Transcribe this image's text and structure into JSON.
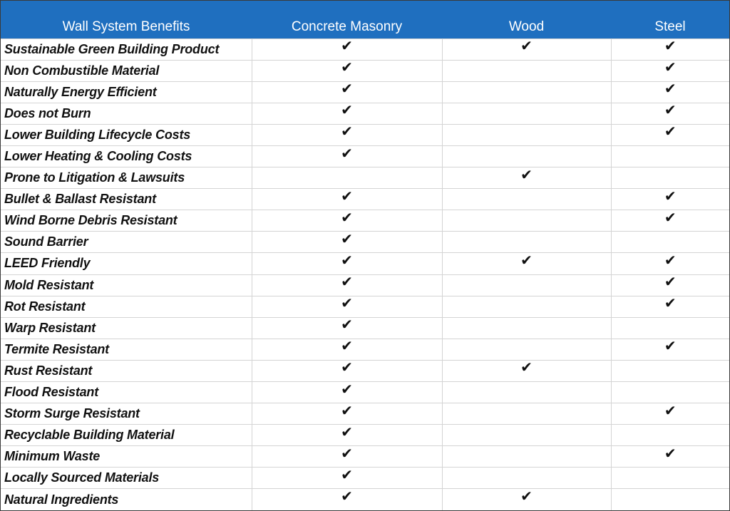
{
  "table": {
    "headers": [
      "Wall System Benefits",
      "Concrete Masonry",
      "Wood",
      "Steel"
    ],
    "check_glyph": "✔",
    "colors": {
      "header_bg": "#1f6fbf",
      "header_text": "#ffffff",
      "grid": "#d4d4d4"
    },
    "rows": [
      {
        "label": "Sustainable Green Building Product",
        "concrete": true,
        "wood": true,
        "steel": true
      },
      {
        "label": "Non Combustible Material",
        "concrete": true,
        "wood": false,
        "steel": true
      },
      {
        "label": "Naturally Energy Efficient",
        "concrete": true,
        "wood": false,
        "steel": true
      },
      {
        "label": "Does not Burn",
        "concrete": true,
        "wood": false,
        "steel": true
      },
      {
        "label": "Lower Building Lifecycle Costs",
        "concrete": true,
        "wood": false,
        "steel": true
      },
      {
        "label": "Lower Heating & Cooling Costs",
        "concrete": true,
        "wood": false,
        "steel": false
      },
      {
        "label": "Prone to Litigation & Lawsuits",
        "concrete": false,
        "wood": true,
        "steel": false
      },
      {
        "label": "Bullet & Ballast Resistant",
        "concrete": true,
        "wood": false,
        "steel": true
      },
      {
        "label": "Wind Borne Debris Resistant",
        "concrete": true,
        "wood": false,
        "steel": true
      },
      {
        "label": "Sound Barrier",
        "concrete": true,
        "wood": false,
        "steel": false
      },
      {
        "label": "LEED Friendly",
        "concrete": true,
        "wood": true,
        "steel": true
      },
      {
        "label": "Mold Resistant",
        "concrete": true,
        "wood": false,
        "steel": true
      },
      {
        "label": "Rot Resistant",
        "concrete": true,
        "wood": false,
        "steel": true
      },
      {
        "label": "Warp Resistant",
        "concrete": true,
        "wood": false,
        "steel": false
      },
      {
        "label": "Termite Resistant",
        "concrete": true,
        "wood": false,
        "steel": true
      },
      {
        "label": "Rust Resistant",
        "concrete": true,
        "wood": true,
        "steel": false
      },
      {
        "label": "Flood Resistant",
        "concrete": true,
        "wood": false,
        "steel": false
      },
      {
        "label": "Storm Surge Resistant",
        "concrete": true,
        "wood": false,
        "steel": true
      },
      {
        "label": "Recyclable  Building Material",
        "concrete": true,
        "wood": false,
        "steel": false
      },
      {
        "label": "Minimum Waste",
        "concrete": true,
        "wood": false,
        "steel": true
      },
      {
        "label": "Locally Sourced Materials",
        "concrete": true,
        "wood": false,
        "steel": false
      },
      {
        "label": "Natural Ingredients",
        "concrete": true,
        "wood": true,
        "steel": false
      }
    ]
  }
}
